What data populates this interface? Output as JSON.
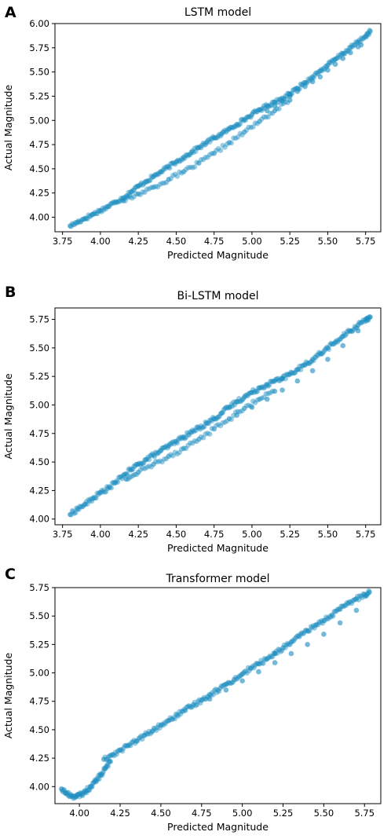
{
  "chart_data": [
    {
      "type": "scatter",
      "panel_label": "A",
      "title": "LSTM model",
      "xlabel": "Predicted Magnitude",
      "ylabel": "Actual Magnitude",
      "xlim": [
        3.7,
        5.85
      ],
      "ylim": [
        3.85,
        6.0
      ],
      "xticks": [
        "3.75",
        "4.00",
        "4.25",
        "4.50",
        "4.75",
        "5.00",
        "5.25",
        "5.50",
        "5.75"
      ],
      "yticks": [
        "4.00",
        "4.25",
        "4.50",
        "4.75",
        "5.00",
        "5.25",
        "5.50",
        "5.75",
        "6.00"
      ],
      "point_color": "#1f8fc0",
      "series": [
        {
          "x": [
            3.8,
            3.85,
            3.9,
            3.95,
            4.0,
            4.05,
            4.1,
            4.15,
            4.2,
            4.25,
            4.3,
            4.35,
            4.4,
            4.45,
            4.5,
            4.55,
            4.6,
            4.65,
            4.7,
            4.75,
            4.8,
            4.85,
            4.9,
            4.95,
            5.0,
            5.05,
            5.1,
            5.15,
            5.2,
            5.25
          ],
          "y": [
            3.91,
            3.95,
            3.99,
            4.03,
            4.07,
            4.11,
            4.16,
            4.2,
            4.26,
            4.32,
            4.37,
            4.42,
            4.47,
            4.52,
            4.57,
            4.62,
            4.67,
            4.72,
            4.77,
            4.82,
            4.86,
            4.91,
            4.96,
            5.01,
            5.06,
            5.11,
            5.15,
            5.19,
            5.23,
            5.27
          ]
        },
        {
          "x": [
            4.15,
            4.25,
            4.35,
            4.45,
            4.55,
            4.65,
            4.75,
            4.85,
            4.95,
            5.05,
            5.15,
            5.25
          ],
          "y": [
            4.17,
            4.24,
            4.31,
            4.39,
            4.47,
            4.56,
            4.66,
            4.77,
            4.88,
            4.99,
            5.1,
            5.21
          ]
        },
        {
          "x": [
            5.25,
            5.3,
            5.35,
            5.4,
            5.45,
            5.5,
            5.55,
            5.6,
            5.65,
            5.7,
            5.75,
            5.78
          ],
          "y": [
            5.27,
            5.33,
            5.39,
            5.45,
            5.51,
            5.57,
            5.63,
            5.69,
            5.75,
            5.81,
            5.87,
            5.92
          ]
        },
        {
          "x": [
            5.1,
            5.15,
            5.2,
            5.25,
            5.3,
            5.35,
            5.4,
            5.45,
            5.5,
            5.55,
            5.6,
            5.65,
            5.7,
            5.72
          ],
          "y": [
            5.1,
            5.15,
            5.2,
            5.25,
            5.3,
            5.35,
            5.4,
            5.45,
            5.52,
            5.58,
            5.64,
            5.7,
            5.76,
            5.78
          ]
        }
      ]
    },
    {
      "type": "scatter",
      "panel_label": "B",
      "title": "Bi-LSTM model",
      "xlabel": "Predicted Magnitude",
      "ylabel": "Actual Magnitude",
      "xlim": [
        3.7,
        5.85
      ],
      "ylim": [
        3.95,
        5.85
      ],
      "xticks": [
        "3.75",
        "4.00",
        "4.25",
        "4.50",
        "4.75",
        "5.00",
        "5.25",
        "5.50",
        "5.75"
      ],
      "yticks": [
        "4.00",
        "4.25",
        "4.50",
        "4.75",
        "5.00",
        "5.25",
        "5.50",
        "5.75"
      ],
      "point_color": "#1f8fc0",
      "series": [
        {
          "x": [
            3.8,
            3.85,
            3.9,
            3.95,
            4.0,
            4.05,
            4.1,
            4.15,
            4.2,
            4.25,
            4.3,
            4.35,
            4.4,
            4.45,
            4.5,
            4.55,
            4.6,
            4.65,
            4.7,
            4.75,
            4.8,
            4.85,
            4.9,
            4.95,
            5.0,
            5.05,
            5.1,
            5.15,
            5.2
          ],
          "y": [
            4.04,
            4.09,
            4.13,
            4.18,
            4.23,
            4.27,
            4.32,
            4.38,
            4.43,
            4.48,
            4.52,
            4.56,
            4.6,
            4.64,
            4.68,
            4.72,
            4.76,
            4.8,
            4.84,
            4.88,
            4.93,
            4.98,
            5.03,
            5.07,
            5.11,
            5.15,
            5.18,
            5.21,
            5.23
          ]
        },
        {
          "x": [
            4.17,
            4.25,
            4.35,
            4.45,
            4.55,
            4.65,
            4.75,
            4.85,
            4.95,
            5.05,
            5.15
          ],
          "y": [
            4.35,
            4.41,
            4.48,
            4.55,
            4.62,
            4.7,
            4.79,
            4.88,
            4.97,
            5.05,
            5.12
          ]
        },
        {
          "x": [
            5.2,
            5.25,
            5.3,
            5.35,
            5.4,
            5.45,
            5.5,
            5.55,
            5.6,
            5.65,
            5.7,
            5.75,
            5.78
          ],
          "y": [
            5.23,
            5.27,
            5.31,
            5.35,
            5.4,
            5.45,
            5.5,
            5.55,
            5.6,
            5.65,
            5.7,
            5.75,
            5.77
          ]
        },
        {
          "x": [
            4.9,
            5.0,
            5.1,
            5.2,
            5.3,
            5.4,
            5.5,
            5.6,
            5.7,
            5.76
          ],
          "y": [
            4.91,
            4.98,
            5.05,
            5.13,
            5.21,
            5.3,
            5.4,
            5.52,
            5.65,
            5.76
          ]
        }
      ]
    },
    {
      "type": "scatter",
      "panel_label": "C",
      "title": "Transformer model",
      "xlabel": "Predicted Magnitude",
      "ylabel": "Actual Magnitude",
      "xlim": [
        3.85,
        5.85
      ],
      "ylim": [
        3.85,
        5.75
      ],
      "xticks": [
        "4.00",
        "4.25",
        "4.50",
        "4.75",
        "5.00",
        "5.25",
        "5.50",
        "5.75"
      ],
      "yticks": [
        "4.00",
        "4.25",
        "4.50",
        "4.75",
        "5.00",
        "5.25",
        "5.50",
        "5.75"
      ],
      "point_color": "#1f8fc0",
      "series": [
        {
          "x": [
            3.89,
            3.92,
            3.95,
            3.98,
            4.01,
            4.04,
            4.07,
            4.1,
            4.13,
            4.16,
            4.19
          ],
          "y": [
            3.98,
            3.94,
            3.92,
            3.91,
            3.93,
            3.96,
            4.0,
            4.05,
            4.1,
            4.16,
            4.22
          ]
        },
        {
          "x": [
            4.15,
            4.2,
            4.25,
            4.3,
            4.35,
            4.4,
            4.45,
            4.5,
            4.55,
            4.6,
            4.65,
            4.7,
            4.75,
            4.8,
            4.85,
            4.9,
            4.95,
            5.0,
            5.05,
            5.1,
            5.15,
            5.2
          ],
          "y": [
            4.24,
            4.28,
            4.32,
            4.36,
            4.4,
            4.45,
            4.49,
            4.54,
            4.58,
            4.63,
            4.67,
            4.72,
            4.76,
            4.81,
            4.85,
            4.9,
            4.94,
            4.99,
            5.04,
            5.08,
            5.12,
            5.17
          ]
        },
        {
          "x": [
            5.2,
            5.25,
            5.3,
            5.35,
            5.4,
            5.45,
            5.5,
            5.55,
            5.6,
            5.65,
            5.7,
            5.75,
            5.78
          ],
          "y": [
            5.17,
            5.22,
            5.27,
            5.32,
            5.37,
            5.42,
            5.46,
            5.51,
            5.56,
            5.61,
            5.65,
            5.69,
            5.71
          ]
        },
        {
          "x": [
            4.8,
            4.9,
            5.0,
            5.1,
            5.2,
            5.3,
            5.4,
            5.5,
            5.6,
            5.7
          ],
          "y": [
            4.77,
            4.85,
            4.93,
            5.01,
            5.09,
            5.17,
            5.25,
            5.34,
            5.44,
            5.55
          ]
        }
      ]
    }
  ]
}
